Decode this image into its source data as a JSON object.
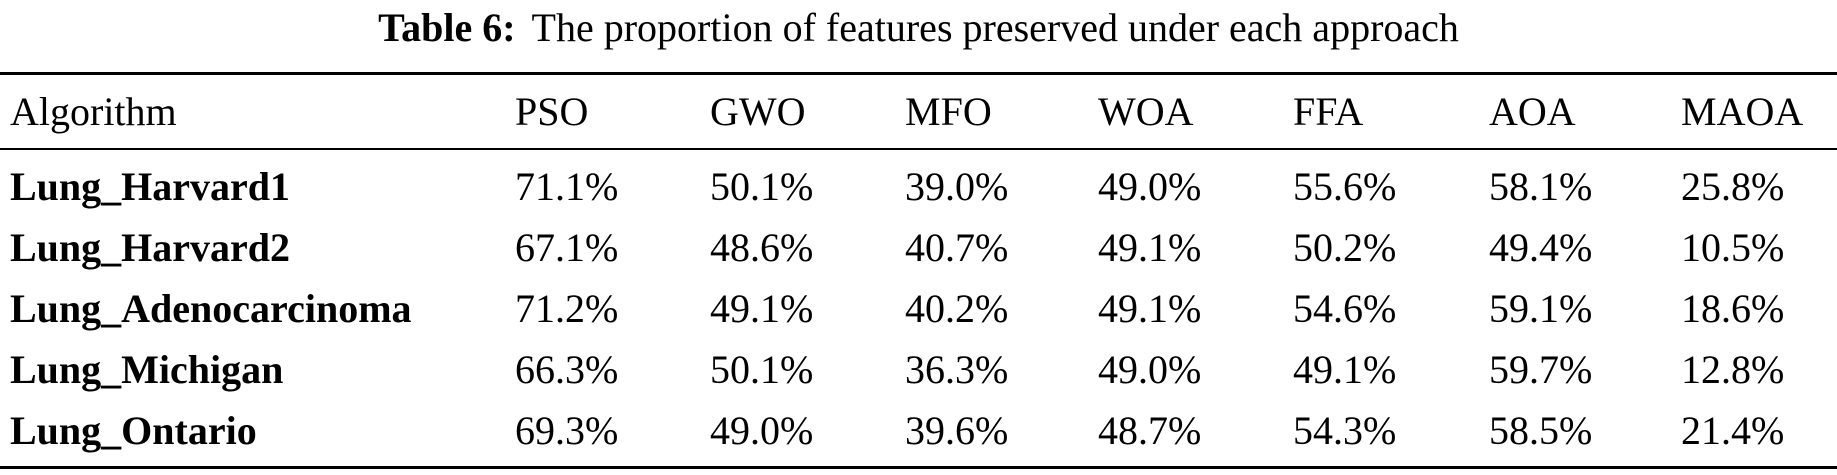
{
  "caption": {
    "label": "Table 6:",
    "text": "The proportion of features preserved under each approach"
  },
  "table": {
    "columns": [
      "Algorithm",
      "PSO",
      "GWO",
      "MFO",
      "WOA",
      "FFA",
      "AOA",
      "MAOA"
    ],
    "rows": [
      [
        "Lung_Harvard1",
        "71.1%",
        "50.1%",
        "39.0%",
        "49.0%",
        "55.6%",
        "58.1%",
        "25.8%"
      ],
      [
        "Lung_Harvard2",
        "67.1%",
        "48.6%",
        "40.7%",
        "49.1%",
        "50.2%",
        "49.4%",
        "10.5%"
      ],
      [
        "Lung_Adenocarcinoma",
        "71.2%",
        "49.1%",
        "40.2%",
        "49.1%",
        "54.6%",
        "59.1%",
        "18.6%"
      ],
      [
        "Lung_Michigan",
        "66.3%",
        "50.1%",
        "36.3%",
        "49.0%",
        "49.1%",
        "59.7%",
        "12.8%"
      ],
      [
        "Lung_Ontario",
        "69.3%",
        "49.0%",
        "39.6%",
        "48.7%",
        "54.3%",
        "58.5%",
        "21.4%"
      ]
    ]
  }
}
